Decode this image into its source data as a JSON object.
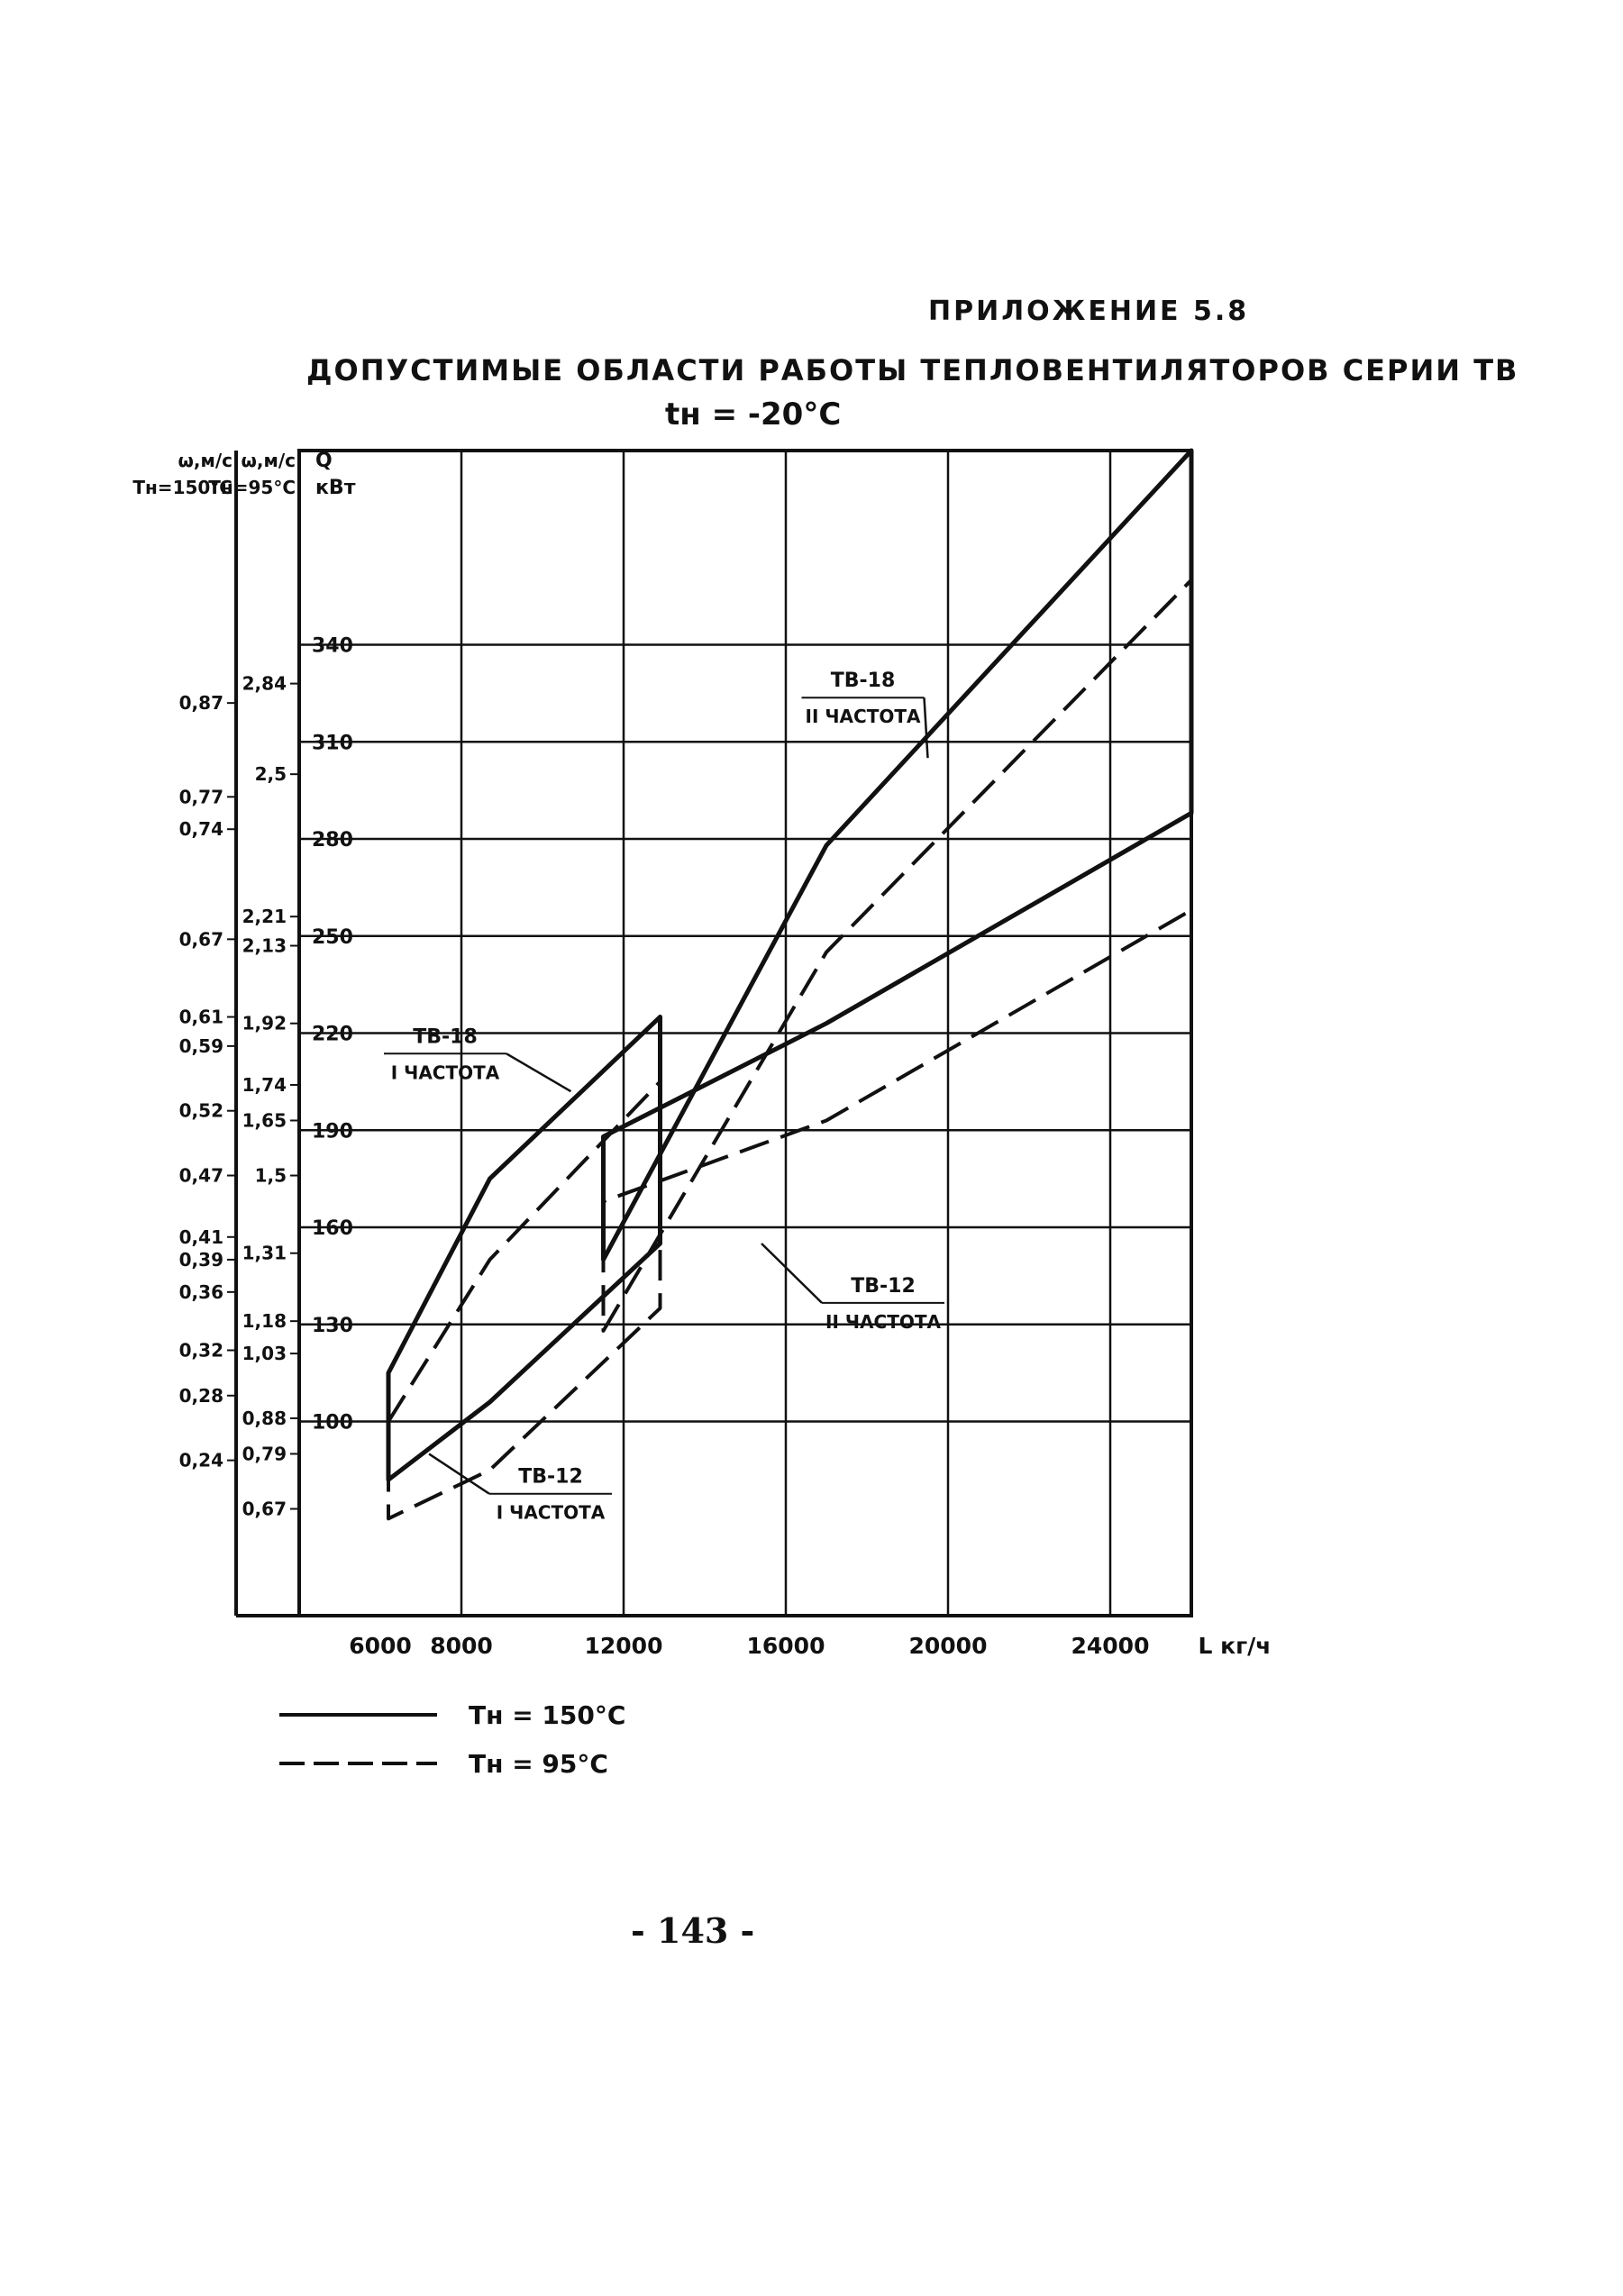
{
  "page": {
    "appendix": "ПРИЛОЖЕНИЕ 5.8",
    "title": "ДОПУСТИМЫЕ ОБЛАСТИ РАБОТЫ ТЕПЛОВЕНТИЛЯТОРОВ СЕРИИ ТВ",
    "subtitle": "tн = -20°C",
    "page_number": "- 143 -"
  },
  "colors": {
    "ink": "#111111",
    "background": "#ffffff"
  },
  "chart_data": {
    "type": "line",
    "grid": true,
    "legend": "bottom-left",
    "xlabel": "L кг/ч",
    "xlim": [
      4000,
      26000
    ],
    "x_ticks": [
      6000,
      8000,
      12000,
      16000,
      20000,
      24000
    ],
    "x_tick_labels": [
      "6000",
      "8000",
      "12000",
      "16000",
      "20000",
      "24000",
      "L кг/ч"
    ],
    "x_gridlines": [
      8000,
      12000,
      16000,
      20000,
      24000
    ],
    "q_axis": {
      "label": [
        "Q",
        "кВт"
      ],
      "range": [
        40,
        400
      ],
      "ticks": [
        100,
        130,
        160,
        190,
        220,
        250,
        280,
        310,
        340
      ],
      "tick_labels": [
        "100",
        "130",
        "160",
        "190",
        "220",
        "250",
        "280",
        "310",
        "340"
      ]
    },
    "w150_axis": {
      "label": [
        "ω,м/с",
        "Тн=150°С"
      ],
      "ticks": [
        {
          "label": "0,87",
          "q": 322
        },
        {
          "label": "0,77",
          "q": 293
        },
        {
          "label": "0,74",
          "q": 283
        },
        {
          "label": "0,67",
          "q": 249
        },
        {
          "label": "0,61",
          "q": 225
        },
        {
          "label": "0,59",
          "q": 216
        },
        {
          "label": "0,52",
          "q": 196
        },
        {
          "label": "0,47",
          "q": 176
        },
        {
          "label": "0,41",
          "q": 157
        },
        {
          "label": "0,39",
          "q": 150
        },
        {
          "label": "0,36",
          "q": 140
        },
        {
          "label": "0,32",
          "q": 122
        },
        {
          "label": "0,28",
          "q": 108
        },
        {
          "label": "0,24",
          "q": 88
        }
      ]
    },
    "w95_axis": {
      "label": [
        "ω,м/с",
        "Тн=95°С"
      ],
      "ticks": [
        {
          "label": "2,84",
          "q": 328
        },
        {
          "label": "2,5",
          "q": 300
        },
        {
          "label": "2,21",
          "q": 256
        },
        {
          "label": "2,13",
          "q": 247
        },
        {
          "label": "1,92",
          "q": 223
        },
        {
          "label": "1,74",
          "q": 204
        },
        {
          "label": "1,65",
          "q": 193
        },
        {
          "label": "1,5",
          "q": 176
        },
        {
          "label": "1,31",
          "q": 152
        },
        {
          "label": "1,18",
          "q": 131
        },
        {
          "label": "1,03",
          "q": 121
        },
        {
          "label": "0,88",
          "q": 101
        },
        {
          "label": "0,79",
          "q": 90
        },
        {
          "label": "0,67",
          "q": 73
        }
      ]
    },
    "legend_entries": [
      {
        "label": "Тн = 150°С",
        "style": "solid"
      },
      {
        "label": "Тн = 95°С",
        "style": "dashed"
      }
    ],
    "regions": [
      {
        "label": [
          "ТВ-18",
          "I ЧАСТОТА"
        ],
        "polygons": [
          {
            "style": "solid",
            "points": [
              [
                6200,
                115
              ],
              [
                8700,
                175
              ],
              [
                12900,
                225
              ],
              [
                12900,
                155
              ],
              [
                8700,
                106
              ],
              [
                6200,
                82
              ]
            ]
          },
          {
            "style": "dashed",
            "points": [
              [
                6200,
                100
              ],
              [
                8700,
                150
              ],
              [
                12900,
                205
              ],
              [
                12900,
                135
              ],
              [
                8700,
                85
              ],
              [
                6200,
                70
              ]
            ]
          }
        ]
      },
      {
        "label": [
          "ТВ-18",
          "II ЧАСТОТА"
        ],
        "polygons": [
          {
            "style": "solid",
            "points": [
              [
                11500,
                150
              ],
              [
                17000,
                278
              ],
              [
                26000,
                400
              ],
              [
                26000,
                288
              ],
              [
                17000,
                223
              ],
              [
                11500,
                188
              ]
            ]
          },
          {
            "style": "dashed",
            "points": [
              [
                11500,
                128
              ],
              [
                17000,
                245
              ],
              [
                26000,
                360
              ],
              [
                26000,
                258
              ],
              [
                17000,
                193
              ],
              [
                11500,
                168
              ]
            ]
          }
        ]
      }
    ],
    "annotations": [
      {
        "lines": [
          "ТВ-18",
          "II ЧАСТОТА"
        ],
        "x": 17900,
        "q": 327,
        "leader_to": [
          19500,
          305
        ]
      },
      {
        "lines": [
          "ТВ-18",
          "I ЧАСТОТА"
        ],
        "x": 7600,
        "q": 217,
        "leader_to": [
          10700,
          202
        ]
      },
      {
        "lines": [
          "ТВ-12",
          "II ЧАСТОТА"
        ],
        "x": 18400,
        "q": 140,
        "leader_to": [
          15400,
          155
        ]
      },
      {
        "lines": [
          "ТВ-12",
          "I ЧАСТОТА"
        ],
        "x": 10200,
        "q": 81,
        "leader_to": [
          7200,
          90
        ]
      }
    ]
  }
}
